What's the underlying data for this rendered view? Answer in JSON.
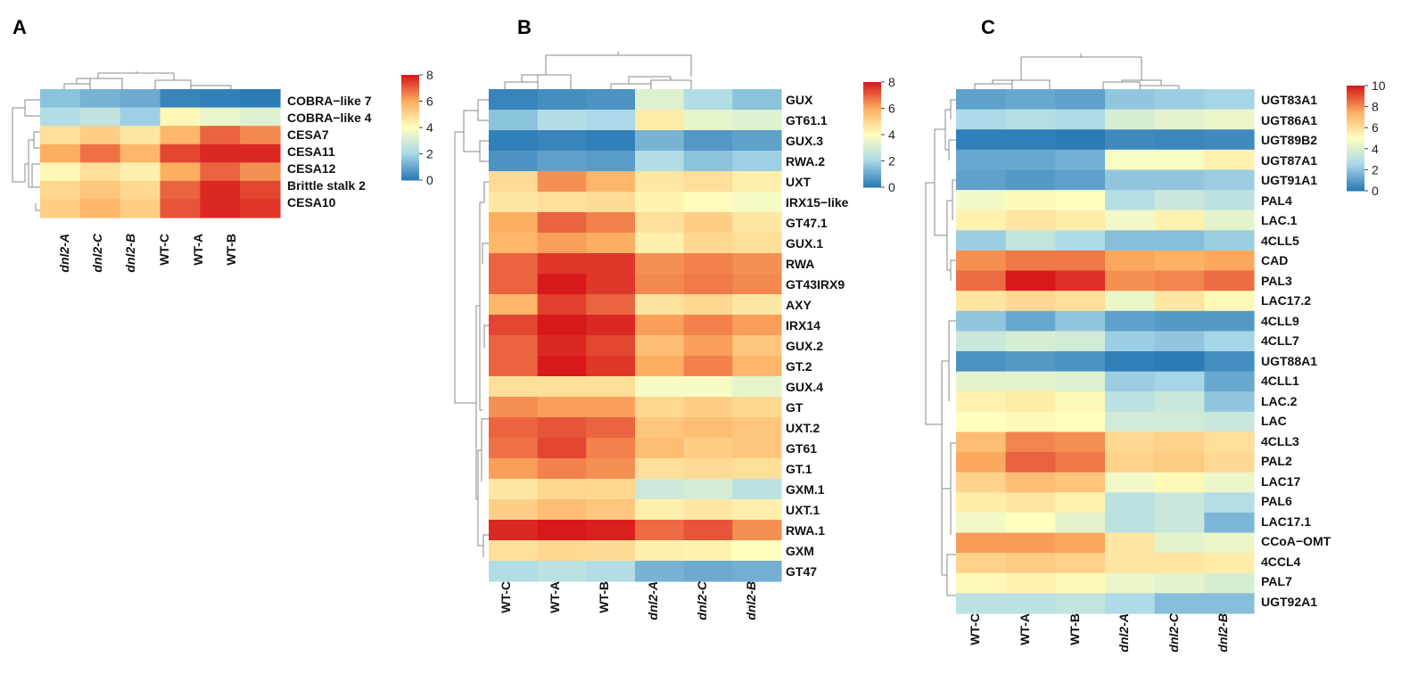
{
  "colors": {
    "low": "#2166ac",
    "mid": "#ffffbf",
    "high": "#d7191c",
    "scale": [
      "#2c7bb6",
      "#abd9e9",
      "#ffffbf",
      "#fdae61",
      "#d7191c"
    ]
  },
  "chart_data": [
    {
      "type": "heatmap",
      "panel": "A",
      "columns": [
        "dnl2-A",
        "dnl2-C",
        "dnl2-B",
        "WT-C",
        "WT-A",
        "WT-B"
      ],
      "rows": [
        "COBRA−like 7",
        "COBRA−like 4",
        "CESA7",
        "CESA11",
        "CESA12",
        "Brittle stalk 2",
        "CESA10"
      ],
      "values": [
        [
          1.5,
          1.2,
          1.0,
          0.2,
          0.1,
          0.0
        ],
        [
          2.2,
          2.5,
          1.8,
          4.2,
          3.5,
          3.2
        ],
        [
          4.8,
          5.2,
          4.6,
          5.8,
          7.0,
          6.5
        ],
        [
          6.0,
          6.8,
          5.8,
          7.4,
          7.8,
          7.8
        ],
        [
          4.2,
          4.8,
          4.4,
          6.0,
          7.0,
          6.4
        ],
        [
          5.0,
          5.4,
          5.0,
          7.0,
          7.8,
          7.4
        ],
        [
          5.2,
          5.8,
          5.2,
          7.2,
          7.8,
          7.6
        ]
      ],
      "legend_ticks": [
        0,
        2,
        4,
        6,
        8
      ],
      "range": [
        0,
        8
      ]
    },
    {
      "type": "heatmap",
      "panel": "B",
      "columns": [
        "WT-C",
        "WT-A",
        "WT-B",
        "dnl2-A",
        "dnl2-C",
        "dnl2-B"
      ],
      "rows": [
        "GUX",
        "GT61.1",
        "GUX.3",
        "RWA.2",
        "UXT",
        "IRX15−like",
        "GT47.1",
        "GUX.1",
        "RWA",
        "GT43IRX9",
        "AXY",
        "IRX14",
        "GUX.2",
        "GT.2",
        "GUX.4",
        "GT",
        "UXT.2",
        "GT61",
        "GT.1",
        "GXM.1",
        "UXT.1",
        "RWA.1",
        "GXM",
        "GT47"
      ],
      "values": [
        [
          0.2,
          0.4,
          0.5,
          3.2,
          2.2,
          1.5
        ],
        [
          1.5,
          2.2,
          2.0,
          4.5,
          3.4,
          3.2
        ],
        [
          0.1,
          0.2,
          0.1,
          1.2,
          0.6,
          0.8
        ],
        [
          0.5,
          0.8,
          0.7,
          2.2,
          1.5,
          1.8
        ],
        [
          4.9,
          6.4,
          5.8,
          4.6,
          4.8,
          4.4
        ],
        [
          4.6,
          4.8,
          4.9,
          4.3,
          4.1,
          3.8
        ],
        [
          6.0,
          7.0,
          6.6,
          4.8,
          5.2,
          4.6
        ],
        [
          5.8,
          6.2,
          6.0,
          4.4,
          5.0,
          4.8
        ],
        [
          7.0,
          7.6,
          7.6,
          6.4,
          6.6,
          6.4
        ],
        [
          7.0,
          8.0,
          7.6,
          6.5,
          6.7,
          6.5
        ],
        [
          5.8,
          7.5,
          7.0,
          4.7,
          5.0,
          4.6
        ],
        [
          7.4,
          8.0,
          7.8,
          6.2,
          6.6,
          6.2
        ],
        [
          7.0,
          7.8,
          7.4,
          5.6,
          6.2,
          5.4
        ],
        [
          7.0,
          8.0,
          7.6,
          6.0,
          6.6,
          5.8
        ],
        [
          4.8,
          4.8,
          4.8,
          3.8,
          3.8,
          3.4
        ],
        [
          6.4,
          6.2,
          6.2,
          5.0,
          5.2,
          5.0
        ],
        [
          7.0,
          7.2,
          7.0,
          5.4,
          5.6,
          5.4
        ],
        [
          6.8,
          7.4,
          6.6,
          5.6,
          5.2,
          5.4
        ],
        [
          6.2,
          6.6,
          6.4,
          4.8,
          4.9,
          4.8
        ],
        [
          4.6,
          5.0,
          5.0,
          2.8,
          3.0,
          2.4
        ],
        [
          5.2,
          5.6,
          5.4,
          4.4,
          4.6,
          4.4
        ],
        [
          7.8,
          8.0,
          7.9,
          6.9,
          7.2,
          6.4
        ],
        [
          4.8,
          5.0,
          4.9,
          4.4,
          4.3,
          4.0
        ],
        [
          2.2,
          2.4,
          2.2,
          1.2,
          1.0,
          1.1
        ]
      ],
      "legend_ticks": [
        0,
        2,
        4,
        6,
        8
      ],
      "range": [
        0,
        8
      ]
    },
    {
      "type": "heatmap",
      "panel": "C",
      "columns": [
        "WT-C",
        "WT-A",
        "WT-B",
        "dnl2-A",
        "dnl2-C",
        "dnl2-B"
      ],
      "rows": [
        "UGT83A1",
        "UGT86A1",
        "UGT89B2",
        "UGT87A1",
        "UGT91A1",
        "PAL4",
        "LAC.1",
        "4CLL5",
        "CAD",
        "PAL3",
        "LAC17.2",
        "4CLL9",
        "4CLL7",
        "UGT88A1",
        "4CLL1",
        "LAC.2",
        "LAC",
        "4CLL3",
        "PAL2",
        "LAC17",
        "PAL6",
        "LAC17.1",
        "CCoA−OMT",
        "4CCL4",
        "PAL7",
        "UGT92A1"
      ],
      "values": [
        [
          1.0,
          1.2,
          1.0,
          2.0,
          2.2,
          2.4
        ],
        [
          2.5,
          2.8,
          2.6,
          3.8,
          4.2,
          4.4
        ],
        [
          0.1,
          0.1,
          0.0,
          0.4,
          0.3,
          0.4
        ],
        [
          1.2,
          1.2,
          1.4,
          4.8,
          4.8,
          5.4
        ],
        [
          1.0,
          0.8,
          1.0,
          2.0,
          2.0,
          2.2
        ],
        [
          4.6,
          5.2,
          5.0,
          2.8,
          3.4,
          3.0
        ],
        [
          5.4,
          5.8,
          5.6,
          4.6,
          5.4,
          4.2
        ],
        [
          2.2,
          3.2,
          2.6,
          1.8,
          1.8,
          2.2
        ],
        [
          8.0,
          8.4,
          8.4,
          7.6,
          7.4,
          7.6
        ],
        [
          8.6,
          10.0,
          9.6,
          8.0,
          8.2,
          8.6
        ],
        [
          5.8,
          6.2,
          6.0,
          4.4,
          5.8,
          5.2
        ],
        [
          2.0,
          1.2,
          2.0,
          1.0,
          0.8,
          0.8
        ],
        [
          3.4,
          3.8,
          3.6,
          2.2,
          2.0,
          2.4
        ],
        [
          0.6,
          0.8,
          0.6,
          0.1,
          0.0,
          0.5
        ],
        [
          4.2,
          4.2,
          4.0,
          2.2,
          2.4,
          1.2
        ],
        [
          5.4,
          5.6,
          5.2,
          3.0,
          3.4,
          2.0
        ],
        [
          5.0,
          5.2,
          5.0,
          3.6,
          3.6,
          3.4
        ],
        [
          7.0,
          8.2,
          8.0,
          6.2,
          6.4,
          6.0
        ],
        [
          7.6,
          8.8,
          8.4,
          6.4,
          6.6,
          6.2
        ],
        [
          6.4,
          7.0,
          6.8,
          4.6,
          5.2,
          4.4
        ],
        [
          5.6,
          5.8,
          5.4,
          3.0,
          3.4,
          2.8
        ],
        [
          4.6,
          5.0,
          4.2,
          3.0,
          3.4,
          1.6
        ],
        [
          7.8,
          7.8,
          7.6,
          5.8,
          4.2,
          4.4
        ],
        [
          6.4,
          6.6,
          6.4,
          5.8,
          5.8,
          5.6
        ],
        [
          5.2,
          5.4,
          5.2,
          4.4,
          4.2,
          3.8
        ],
        [
          3.0,
          3.0,
          3.2,
          2.6,
          1.8,
          1.8
        ]
      ],
      "legend_ticks": [
        0,
        2,
        4,
        6,
        8,
        10
      ],
      "range": [
        0,
        10
      ]
    }
  ]
}
